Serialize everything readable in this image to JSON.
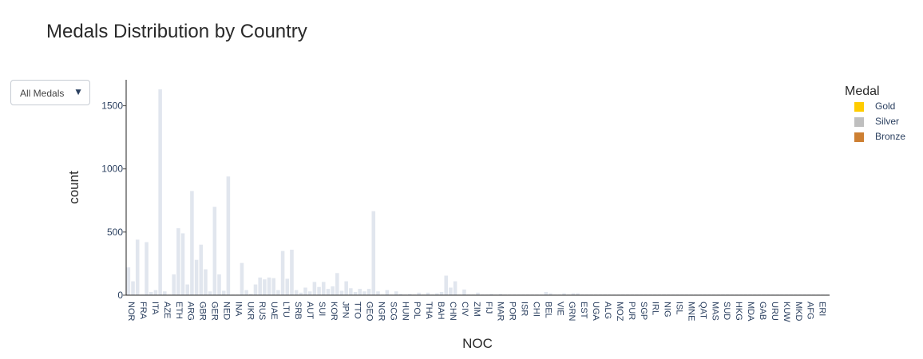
{
  "title": "Medals Distribution by Country",
  "dropdown": {
    "label": "All Medals",
    "caret": "▼"
  },
  "legend": {
    "title": "Medal",
    "items": [
      {
        "label": "Gold",
        "color": "#ffcc00"
      },
      {
        "label": "Silver",
        "color": "#bfbfbf"
      },
      {
        "label": "Bronze",
        "color": "#cd7f32"
      }
    ]
  },
  "chart_data": {
    "type": "bar",
    "title": "Medals Distribution by Country",
    "xlabel": "NOC",
    "ylabel": "count",
    "ylim": [
      0,
      1700
    ],
    "yticks": [
      0,
      500,
      1000,
      1500
    ],
    "grid": false,
    "legend_position": "right",
    "bar_color": "#e1e6ee",
    "tick_labels_shown": [
      "NOR",
      "FRA",
      "ITA",
      "AZE",
      "ETH",
      "ARG",
      "GBR",
      "GER",
      "NED",
      "INA",
      "UKR",
      "RUS",
      "UAE",
      "LTU",
      "SRB",
      "AUT",
      "SUI",
      "KOR",
      "JPN",
      "TTO",
      "GEO",
      "NGR",
      "SCG",
      "HUN",
      "POL",
      "THA",
      "BAH",
      "CHN",
      "CIV",
      "ZIM",
      "FIJ",
      "MAR",
      "POR",
      "ISR",
      "CHI",
      "BEL",
      "VIE",
      "GRN",
      "EST",
      "UGA",
      "ALG",
      "MOZ",
      "PUR",
      "SGP",
      "IRL",
      "NIG",
      "ISL",
      "MNE",
      "QAT",
      "MAS",
      "SUD",
      "HKG",
      "MDA",
      "GAB",
      "URU",
      "KUW",
      "MKD",
      "AFG",
      "ERI"
    ],
    "values": [
      220,
      110,
      440,
      5,
      420,
      25,
      40,
      1630,
      30,
      5,
      165,
      530,
      490,
      85,
      825,
      280,
      400,
      205,
      30,
      700,
      165,
      35,
      940,
      5,
      5,
      255,
      40,
      10,
      85,
      140,
      125,
      140,
      135,
      40,
      350,
      130,
      360,
      40,
      20,
      60,
      30,
      105,
      65,
      105,
      50,
      70,
      175,
      35,
      110,
      55,
      25,
      50,
      30,
      50,
      665,
      30,
      5,
      40,
      5,
      30,
      10,
      5,
      10,
      5,
      20,
      5,
      20,
      5,
      15,
      25,
      155,
      60,
      110,
      5,
      45,
      5,
      5,
      20,
      5,
      5,
      10,
      5,
      10,
      5,
      5,
      5,
      5,
      5,
      5,
      5,
      5,
      5,
      25,
      15,
      5,
      5,
      15,
      5,
      15,
      15,
      5,
      5,
      5,
      5,
      5,
      5,
      5,
      5,
      5,
      5,
      5,
      5,
      5,
      5,
      5,
      5,
      5,
      5,
      5,
      5,
      5,
      5,
      5,
      5,
      5,
      5,
      5,
      5,
      5,
      5,
      5,
      5,
      5,
      5,
      5,
      5,
      5,
      5,
      5,
      5,
      5,
      5,
      5,
      5,
      5,
      5,
      5,
      5,
      5,
      5,
      5,
      5,
      5,
      5,
      5
    ]
  }
}
